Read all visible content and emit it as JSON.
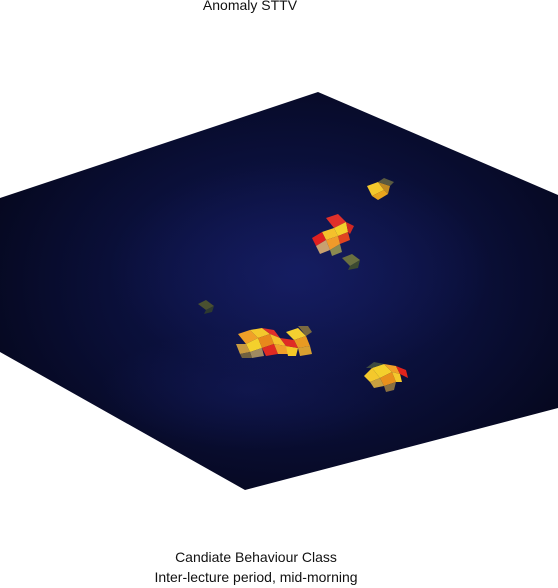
{
  "title": "Anomaly STTV",
  "caption": {
    "line1": "Candiate Behaviour Class",
    "line2": "Inter-lecture period, mid-morning"
  },
  "colors": {
    "background": "#ffffff",
    "volume_dark": "#080a24",
    "volume_mid": "#0c1240",
    "hot_red": "#e0241c",
    "hot_orange": "#f08a1c",
    "hot_yellow": "#f4d02c",
    "olive": "#6a6a30"
  },
  "anomaly_clusters": [
    {
      "name": "cluster-top-right"
    },
    {
      "name": "cluster-upper-center"
    },
    {
      "name": "cluster-small-green"
    },
    {
      "name": "cluster-left-faint"
    },
    {
      "name": "cluster-center-large"
    },
    {
      "name": "cluster-lower-right"
    }
  ]
}
